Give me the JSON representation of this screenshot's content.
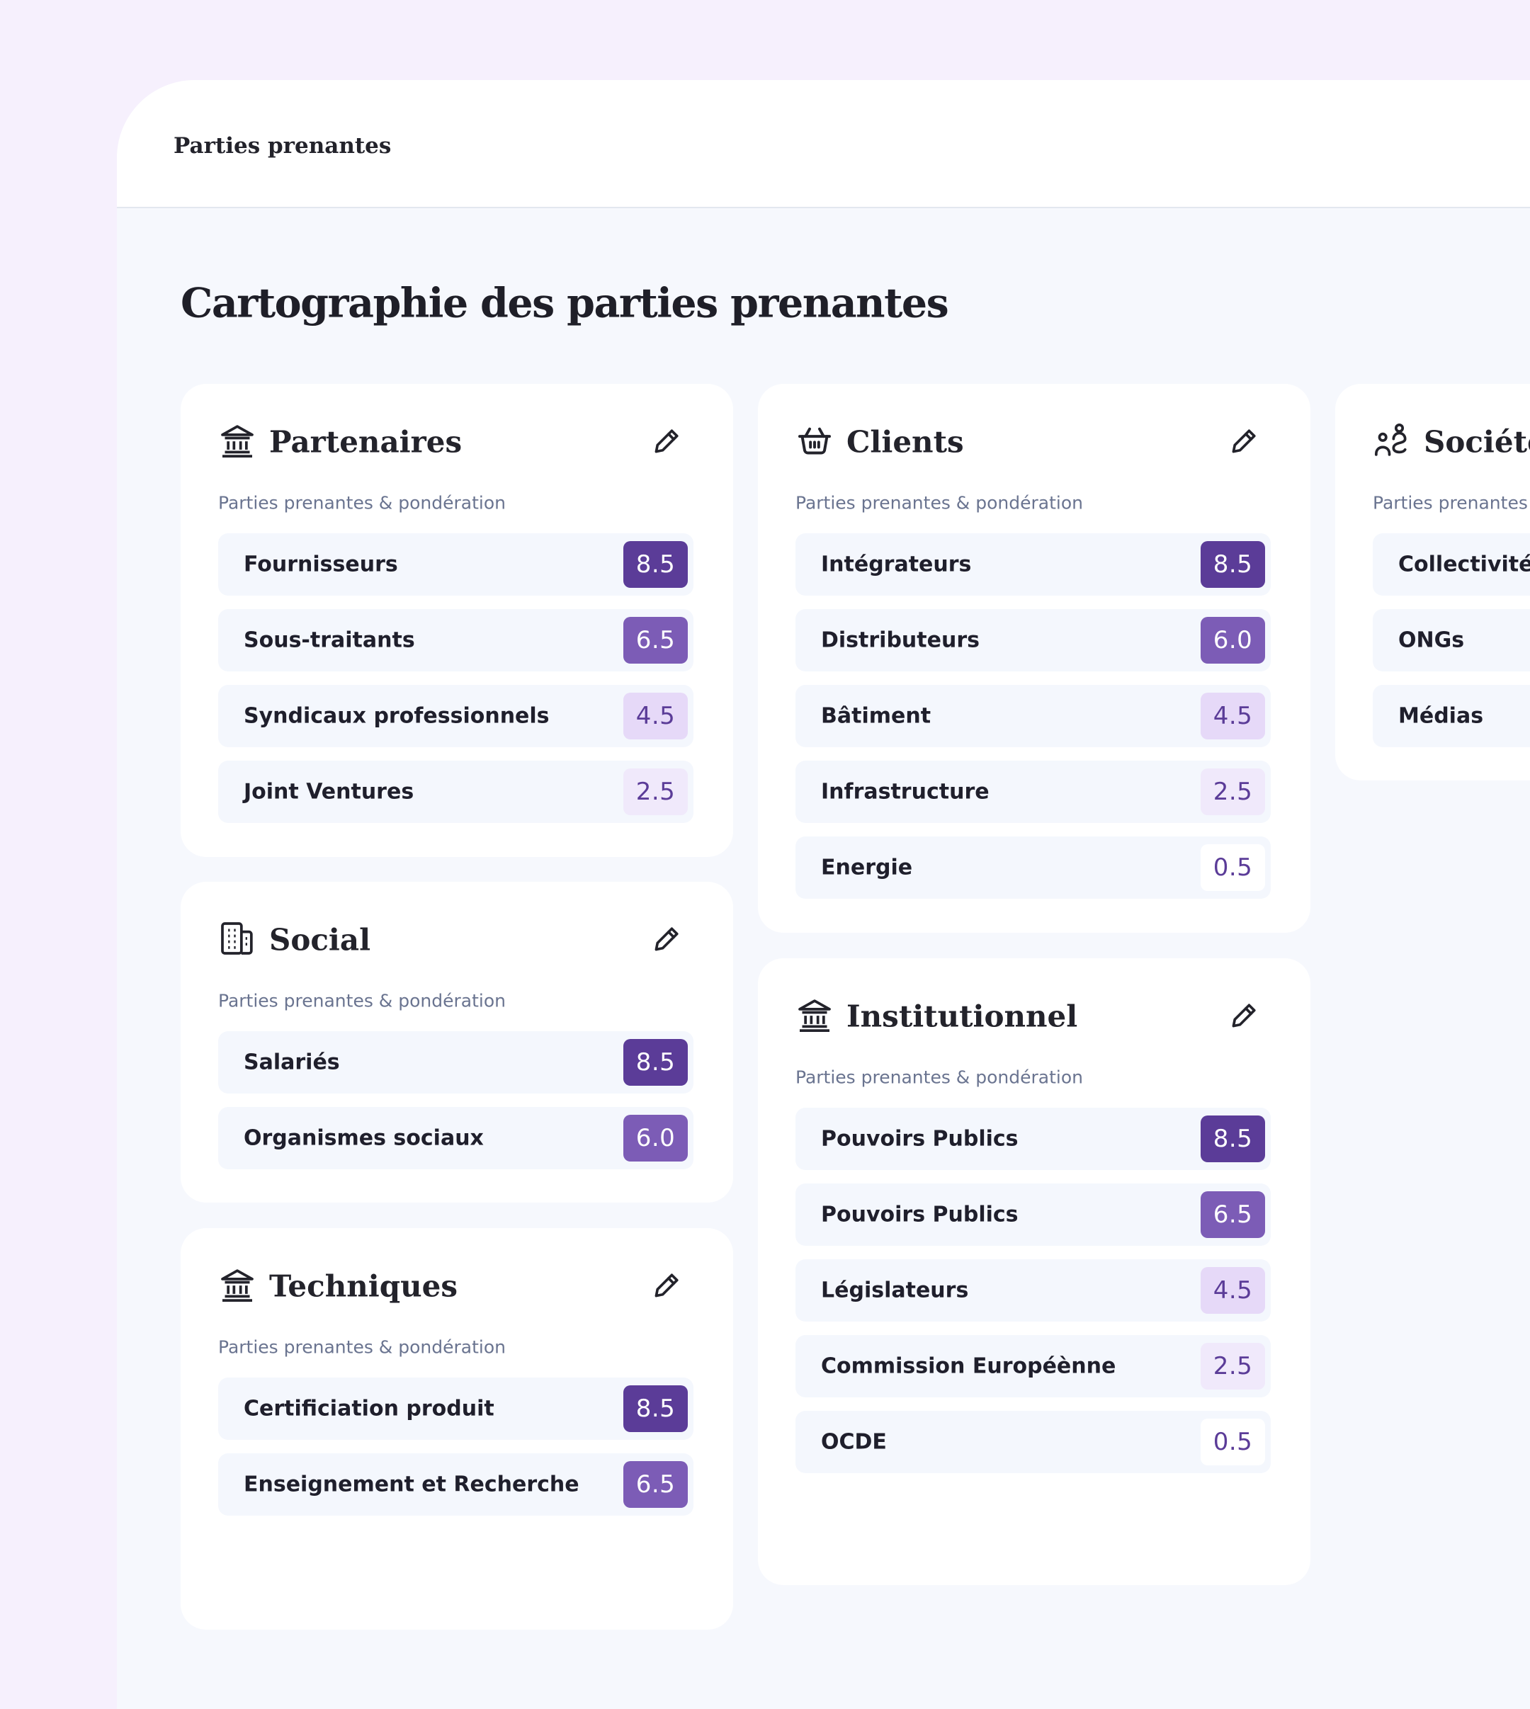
{
  "topbar": {
    "title": "Parties prenantes"
  },
  "page": {
    "title": "Cartographie des parties prenantes"
  },
  "accent_colors": {
    "strong": "#5b3c98",
    "medium": "#7c5cb6",
    "light": "#e6d9f8",
    "lighter": "#f0e9fb"
  },
  "cards": {
    "partenaires": {
      "title": "Partenaires",
      "icon": "bank-icon",
      "subtitle": "Parties prenantes & pondération",
      "rows": [
        {
          "label": "Fournisseurs",
          "score": "8.5"
        },
        {
          "label": "Sous-traitants",
          "score": "6.5"
        },
        {
          "label": "Syndicaux professionnels",
          "score": "4.5"
        },
        {
          "label": "Joint Ventures",
          "score": "2.5"
        }
      ]
    },
    "social": {
      "title": "Social",
      "icon": "building-icon",
      "subtitle": "Parties prenantes & pondération",
      "rows": [
        {
          "label": "Salariés",
          "score": "8.5"
        },
        {
          "label": "Organismes sociaux",
          "score": "6.0"
        }
      ]
    },
    "techniques": {
      "title": "Techniques",
      "icon": "bank-icon",
      "subtitle": "Parties prenantes & pondération",
      "rows": [
        {
          "label": "Certificiation produit",
          "score": "8.5"
        },
        {
          "label": "Enseignement et Recherche",
          "score": "6.5"
        }
      ]
    },
    "clients": {
      "title": "Clients",
      "icon": "basket-icon",
      "subtitle": "Parties prenantes & pondération",
      "rows": [
        {
          "label": "Intégrateurs",
          "score": "8.5"
        },
        {
          "label": "Distributeurs",
          "score": "6.0"
        },
        {
          "label": "Bâtiment",
          "score": "4.5"
        },
        {
          "label": "Infrastructure",
          "score": "2.5"
        },
        {
          "label": "Energie",
          "score": "0.5"
        }
      ]
    },
    "institutionnel": {
      "title": "Institutionnel",
      "icon": "bank-icon",
      "subtitle": "Parties prenantes & pondération",
      "rows": [
        {
          "label": "Pouvoirs Publics",
          "score": "8.5"
        },
        {
          "label": "Pouvoirs Publics",
          "score": "6.5"
        },
        {
          "label": "Législateurs",
          "score": "4.5"
        },
        {
          "label": "Commission Européènne",
          "score": "2.5"
        },
        {
          "label": "OCDE",
          "score": "0.5"
        }
      ]
    },
    "societe": {
      "title": "Société",
      "icon": "people-icon",
      "subtitle": "Parties prenantes",
      "rows": [
        {
          "label": "Collectivités"
        },
        {
          "label": "ONGs"
        },
        {
          "label": "Médias"
        }
      ]
    }
  }
}
